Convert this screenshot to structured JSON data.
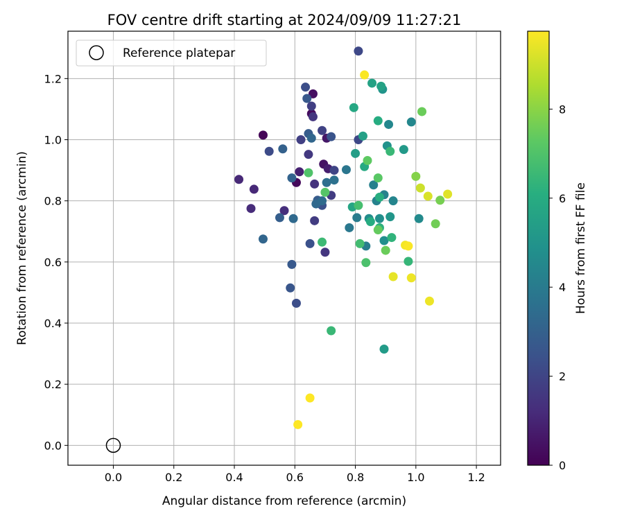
{
  "chart_data": {
    "type": "scatter",
    "title": "FOV centre drift starting at 2024/09/09 11:27:21",
    "xlabel": "Angular distance from reference (arcmin)",
    "ylabel": "Rotation from reference (arcmin)",
    "xlim": [
      -0.15,
      1.28
    ],
    "ylim": [
      -0.065,
      1.355
    ],
    "xticks": [
      0.0,
      0.2,
      0.4,
      0.6,
      0.8,
      1.0,
      1.2
    ],
    "xtick_labels": [
      "0.0",
      "0.2",
      "0.4",
      "0.6",
      "0.8",
      "1.0",
      "1.2"
    ],
    "yticks": [
      0.0,
      0.2,
      0.4,
      0.6,
      0.8,
      1.0,
      1.2
    ],
    "ytick_labels": [
      "0.0",
      "0.2",
      "0.4",
      "0.6",
      "0.8",
      "1.0",
      "1.2"
    ],
    "grid": true,
    "legend": {
      "position": "top-left",
      "label": "Reference platepar"
    },
    "reference_point": {
      "x": 0.0,
      "y": 0.0
    },
    "colorbar": {
      "label": "Hours from first FF file",
      "range": [
        0,
        9.75
      ],
      "ticks": [
        0,
        2,
        4,
        6,
        8
      ],
      "tick_labels": [
        "0",
        "2",
        "4",
        "6",
        "8"
      ],
      "colormap": "viridis"
    },
    "points": [
      {
        "x": 0.495,
        "y": 1.015,
        "h": 0.1
      },
      {
        "x": 0.605,
        "y": 0.86,
        "h": 0.2
      },
      {
        "x": 0.655,
        "y": 1.085,
        "h": 0.3
      },
      {
        "x": 0.66,
        "y": 1.15,
        "h": 0.4
      },
      {
        "x": 0.695,
        "y": 0.92,
        "h": 0.5
      },
      {
        "x": 0.705,
        "y": 1.005,
        "h": 0.6
      },
      {
        "x": 0.71,
        "y": 0.905,
        "h": 0.8
      },
      {
        "x": 0.615,
        "y": 0.895,
        "h": 0.9
      },
      {
        "x": 0.415,
        "y": 0.87,
        "h": 1.1
      },
      {
        "x": 0.465,
        "y": 0.838,
        "h": 1.1
      },
      {
        "x": 0.455,
        "y": 0.775,
        "h": 1.2
      },
      {
        "x": 0.565,
        "y": 0.768,
        "h": 1.3
      },
      {
        "x": 0.665,
        "y": 0.855,
        "h": 1.4
      },
      {
        "x": 0.7,
        "y": 0.632,
        "h": 1.5
      },
      {
        "x": 0.66,
        "y": 1.075,
        "h": 1.5
      },
      {
        "x": 0.645,
        "y": 0.952,
        "h": 1.6
      },
      {
        "x": 0.665,
        "y": 0.735,
        "h": 1.7
      },
      {
        "x": 0.72,
        "y": 0.818,
        "h": 1.7
      },
      {
        "x": 0.62,
        "y": 1.0,
        "h": 1.8
      },
      {
        "x": 0.655,
        "y": 1.11,
        "h": 1.8
      },
      {
        "x": 0.69,
        "y": 1.03,
        "h": 1.9
      },
      {
        "x": 0.73,
        "y": 0.9,
        "h": 2.0
      },
      {
        "x": 0.81,
        "y": 1.0,
        "h": 2.1
      },
      {
        "x": 0.81,
        "y": 1.29,
        "h": 2.1
      },
      {
        "x": 0.515,
        "y": 0.962,
        "h": 2.2
      },
      {
        "x": 0.605,
        "y": 0.465,
        "h": 2.3
      },
      {
        "x": 0.635,
        "y": 1.172,
        "h": 2.3
      },
      {
        "x": 0.65,
        "y": 0.66,
        "h": 2.4
      },
      {
        "x": 0.69,
        "y": 0.785,
        "h": 2.4
      },
      {
        "x": 0.72,
        "y": 1.01,
        "h": 2.5
      },
      {
        "x": 0.585,
        "y": 0.515,
        "h": 2.6
      },
      {
        "x": 0.59,
        "y": 0.592,
        "h": 2.7
      },
      {
        "x": 0.64,
        "y": 1.135,
        "h": 2.7
      },
      {
        "x": 0.645,
        "y": 1.02,
        "h": 2.8
      },
      {
        "x": 0.675,
        "y": 0.802,
        "h": 2.8
      },
      {
        "x": 0.55,
        "y": 0.745,
        "h": 2.9
      },
      {
        "x": 0.56,
        "y": 0.97,
        "h": 3.0
      },
      {
        "x": 0.59,
        "y": 0.875,
        "h": 3.1
      },
      {
        "x": 0.655,
        "y": 1.005,
        "h": 3.2
      },
      {
        "x": 0.495,
        "y": 0.675,
        "h": 3.2
      },
      {
        "x": 0.595,
        "y": 0.742,
        "h": 3.3
      },
      {
        "x": 0.67,
        "y": 0.79,
        "h": 3.3
      },
      {
        "x": 0.69,
        "y": 0.8,
        "h": 3.4
      },
      {
        "x": 0.705,
        "y": 0.86,
        "h": 3.5
      },
      {
        "x": 0.73,
        "y": 0.868,
        "h": 3.6
      },
      {
        "x": 0.77,
        "y": 0.902,
        "h": 3.8
      },
      {
        "x": 0.78,
        "y": 0.712,
        "h": 3.9
      },
      {
        "x": 0.805,
        "y": 0.745,
        "h": 4.0
      },
      {
        "x": 0.835,
        "y": 0.652,
        "h": 4.1
      },
      {
        "x": 0.86,
        "y": 0.852,
        "h": 4.2
      },
      {
        "x": 0.87,
        "y": 0.8,
        "h": 4.3
      },
      {
        "x": 0.895,
        "y": 0.82,
        "h": 4.3
      },
      {
        "x": 0.925,
        "y": 0.8,
        "h": 4.4
      },
      {
        "x": 0.91,
        "y": 1.05,
        "h": 4.5
      },
      {
        "x": 0.985,
        "y": 1.058,
        "h": 4.5
      },
      {
        "x": 1.01,
        "y": 0.742,
        "h": 4.6
      },
      {
        "x": 0.845,
        "y": 0.742,
        "h": 4.7
      },
      {
        "x": 0.88,
        "y": 0.742,
        "h": 4.8
      },
      {
        "x": 0.895,
        "y": 0.67,
        "h": 4.8
      },
      {
        "x": 0.905,
        "y": 0.98,
        "h": 4.9
      },
      {
        "x": 0.89,
        "y": 1.165,
        "h": 5.0
      },
      {
        "x": 0.915,
        "y": 0.748,
        "h": 5.1
      },
      {
        "x": 0.96,
        "y": 0.968,
        "h": 5.2
      },
      {
        "x": 0.895,
        "y": 0.315,
        "h": 5.3
      },
      {
        "x": 0.8,
        "y": 0.955,
        "h": 5.4
      },
      {
        "x": 0.825,
        "y": 1.012,
        "h": 5.5
      },
      {
        "x": 0.855,
        "y": 1.185,
        "h": 5.6
      },
      {
        "x": 0.885,
        "y": 1.175,
        "h": 5.6
      },
      {
        "x": 0.79,
        "y": 0.78,
        "h": 5.7
      },
      {
        "x": 0.795,
        "y": 1.105,
        "h": 5.8
      },
      {
        "x": 0.83,
        "y": 0.912,
        "h": 5.9
      },
      {
        "x": 0.875,
        "y": 1.062,
        "h": 6.0
      },
      {
        "x": 0.85,
        "y": 0.732,
        "h": 6.0
      },
      {
        "x": 0.88,
        "y": 0.812,
        "h": 6.1
      },
      {
        "x": 0.88,
        "y": 0.712,
        "h": 6.2
      },
      {
        "x": 0.92,
        "y": 0.68,
        "h": 6.3
      },
      {
        "x": 0.975,
        "y": 0.602,
        "h": 6.4
      },
      {
        "x": 0.915,
        "y": 0.962,
        "h": 6.5
      },
      {
        "x": 0.72,
        "y": 0.375,
        "h": 6.5
      },
      {
        "x": 0.69,
        "y": 0.665,
        "h": 6.6
      },
      {
        "x": 0.815,
        "y": 0.66,
        "h": 6.7
      },
      {
        "x": 0.81,
        "y": 0.785,
        "h": 6.8
      },
      {
        "x": 0.835,
        "y": 0.598,
        "h": 6.9
      },
      {
        "x": 0.645,
        "y": 0.892,
        "h": 7.0
      },
      {
        "x": 0.7,
        "y": 0.828,
        "h": 7.1
      },
      {
        "x": 0.875,
        "y": 0.875,
        "h": 7.2
      },
      {
        "x": 0.84,
        "y": 0.932,
        "h": 7.3
      },
      {
        "x": 0.875,
        "y": 0.705,
        "h": 7.4
      },
      {
        "x": 0.9,
        "y": 0.638,
        "h": 7.5
      },
      {
        "x": 1.02,
        "y": 1.092,
        "h": 7.5
      },
      {
        "x": 1.065,
        "y": 0.725,
        "h": 7.6
      },
      {
        "x": 1.08,
        "y": 0.802,
        "h": 7.7
      },
      {
        "x": 1.0,
        "y": 0.88,
        "h": 7.9
      },
      {
        "x": 1.015,
        "y": 0.842,
        "h": 9.0
      },
      {
        "x": 1.04,
        "y": 0.815,
        "h": 9.2
      },
      {
        "x": 1.105,
        "y": 0.822,
        "h": 9.3
      },
      {
        "x": 0.925,
        "y": 0.552,
        "h": 9.4
      },
      {
        "x": 0.985,
        "y": 0.548,
        "h": 9.5
      },
      {
        "x": 1.045,
        "y": 0.472,
        "h": 9.5
      },
      {
        "x": 0.965,
        "y": 0.655,
        "h": 9.6
      },
      {
        "x": 0.975,
        "y": 0.652,
        "h": 9.7
      },
      {
        "x": 0.83,
        "y": 1.212,
        "h": 9.7
      },
      {
        "x": 0.65,
        "y": 0.155,
        "h": 9.8
      },
      {
        "x": 0.61,
        "y": 0.068,
        "h": 9.8
      }
    ]
  }
}
